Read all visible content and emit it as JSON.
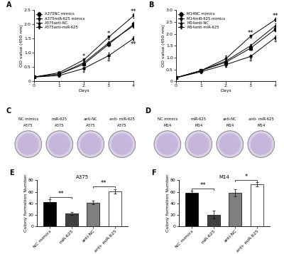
{
  "chart_data": [
    {
      "type": "line",
      "panel_label": "A",
      "x_label": "Days",
      "y_label": "OD value (450 nm)",
      "x": [
        0,
        1,
        2,
        3,
        4
      ],
      "xlim": [
        0,
        4
      ],
      "xticks": [
        0,
        1,
        2,
        3,
        4
      ],
      "ylim": [
        0,
        2.5
      ],
      "yticks": [
        0,
        0.5,
        1.0,
        1.5,
        2.0,
        2.5
      ],
      "legend": "upper left",
      "series": [
        {
          "name": "A375NC mimics",
          "color": "#000000",
          "marker": "square",
          "values": [
            0.15,
            0.25,
            0.6,
            1.3,
            2.0
          ],
          "errors": [
            0.02,
            0.04,
            0.05,
            0.06,
            0.07
          ]
        },
        {
          "name": "A375miR-625 mimics",
          "color": "#000000",
          "marker": "circle",
          "values": [
            0.15,
            0.2,
            0.45,
            0.9,
            1.5
          ],
          "errors": [
            0.02,
            0.04,
            0.05,
            0.1,
            0.07
          ]
        },
        {
          "name": "A375anti-NC",
          "color": "#000000",
          "marker": "triangle_up",
          "values": [
            0.15,
            0.25,
            0.65,
            1.35,
            1.95
          ],
          "errors": [
            0.02,
            0.04,
            0.05,
            0.06,
            0.07
          ]
        },
        {
          "name": "A375anti-miR-625",
          "color": "#000000",
          "marker": "triangle_down",
          "values": [
            0.15,
            0.3,
            0.75,
            1.55,
            2.3
          ],
          "errors": [
            0.02,
            0.04,
            0.05,
            0.06,
            0.07
          ]
        }
      ],
      "annotations": [
        {
          "x": 2,
          "text": "*",
          "series": "A375anti-miR-625"
        },
        {
          "x": 2,
          "text": "*",
          "series": "A375miR-625 mimics"
        },
        {
          "x": 3,
          "text": "*",
          "series": "A375anti-miR-625"
        },
        {
          "x": 3,
          "text": "*",
          "series": "A375miR-625 mimics"
        },
        {
          "x": 4,
          "text": "**",
          "series": "A375anti-miR-625"
        },
        {
          "x": 4,
          "text": "**",
          "series": "A375miR-625 mimics"
        }
      ]
    },
    {
      "type": "line",
      "panel_label": "B",
      "x_label": "Days",
      "y_label": "OD value (450 nm)",
      "x": [
        0,
        1,
        2,
        3,
        4
      ],
      "xlim": [
        0,
        4
      ],
      "xticks": [
        0,
        1,
        2,
        3,
        4
      ],
      "ylim": [
        0,
        3.0
      ],
      "yticks": [
        0,
        0.5,
        1.0,
        1.5,
        2.0,
        2.5,
        3.0
      ],
      "legend": "upper left",
      "series": [
        {
          "name": "M14NC mimics",
          "color": "#000000",
          "marker": "square",
          "values": [
            0.15,
            0.45,
            0.8,
            1.4,
            2.2
          ],
          "errors": [
            0.02,
            0.05,
            0.08,
            0.07,
            0.08
          ]
        },
        {
          "name": "M14miR-625 mimics",
          "color": "#000000",
          "marker": "circle",
          "values": [
            0.15,
            0.4,
            0.7,
            1.05,
            1.85
          ],
          "errors": [
            0.02,
            0.05,
            0.08,
            0.07,
            0.08
          ]
        },
        {
          "name": "M14anti-NC",
          "color": "#000000",
          "marker": "triangle_up",
          "values": [
            0.15,
            0.45,
            0.85,
            1.5,
            2.35
          ],
          "errors": [
            0.02,
            0.05,
            0.25,
            0.07,
            0.08
          ]
        },
        {
          "name": "M14anti-miR-625",
          "color": "#000000",
          "marker": "triangle_down",
          "values": [
            0.15,
            0.45,
            0.95,
            1.9,
            2.6
          ],
          "errors": [
            0.02,
            0.05,
            0.08,
            0.07,
            0.08
          ]
        }
      ],
      "annotations": [
        {
          "x": 3,
          "text": "**",
          "series": "M14anti-miR-625"
        },
        {
          "x": 3,
          "text": "*",
          "series": "M14miR-625 mimics"
        },
        {
          "x": 4,
          "text": "**",
          "series": "M14anti-miR-625"
        },
        {
          "x": 4,
          "text": "*",
          "series": "M14miR-625 mimics"
        }
      ]
    },
    {
      "type": "image",
      "panel_label": "C",
      "cell_line": "A375",
      "labels": [
        "NC mimics",
        "miR-625",
        "anti-NC",
        "anti- miR-625"
      ]
    },
    {
      "type": "image",
      "panel_label": "D",
      "cell_line": "M14",
      "labels": [
        "NC mimics",
        "miR-625",
        "anti-NC",
        "anti- miR-625"
      ]
    },
    {
      "type": "bar",
      "panel_label": "E",
      "title": "A375",
      "y_label": "Colony formation Number",
      "categories": [
        "NC mimics",
        "miR-625",
        "anti-NC",
        "anti- miR-625"
      ],
      "values": [
        42,
        22,
        41,
        61
      ],
      "errors": [
        5,
        3,
        3,
        4
      ],
      "colors": [
        "#000000",
        "#404040",
        "#7f7f7f",
        "#ffffff"
      ],
      "ylim": [
        0,
        80
      ],
      "yticks": [
        0,
        20,
        40,
        60,
        80
      ],
      "significance": [
        {
          "pair": [
            0,
            1
          ],
          "text": "**"
        },
        {
          "pair": [
            2,
            3
          ],
          "text": "**"
        }
      ]
    },
    {
      "type": "bar",
      "panel_label": "F",
      "title": "M14",
      "y_label": "Colony formation Number",
      "categories": [
        "NC mimics",
        "miR-625",
        "anti-NC",
        "anti- miR-625"
      ],
      "values": [
        58,
        20,
        58,
        73
      ],
      "errors": [
        4,
        7,
        6,
        4
      ],
      "colors": [
        "#000000",
        "#404040",
        "#7f7f7f",
        "#ffffff"
      ],
      "ylim": [
        0,
        80
      ],
      "yticks": [
        0,
        20,
        40,
        60,
        80
      ],
      "significance": [
        {
          "pair": [
            0,
            1
          ],
          "text": "**"
        },
        {
          "pair": [
            2,
            3
          ],
          "text": "*"
        }
      ]
    }
  ]
}
